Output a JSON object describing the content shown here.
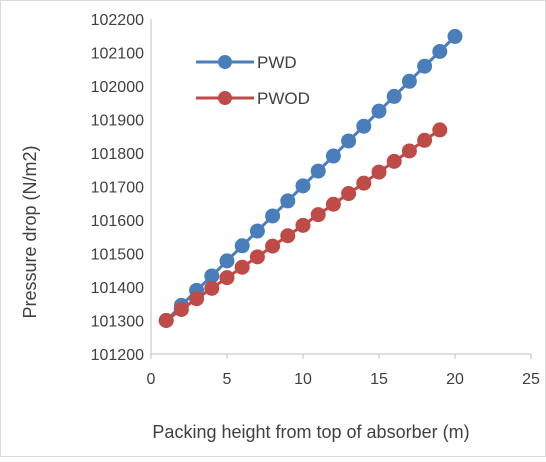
{
  "chart_data": {
    "type": "line",
    "title": "",
    "xlabel": "Packing height from top of absorber (m)",
    "ylabel": "Pressure drop (N/m2)",
    "xlim": [
      0,
      25
    ],
    "ylim": [
      101200,
      102200
    ],
    "xticks": [
      0,
      5,
      10,
      15,
      20,
      25
    ],
    "yticks": [
      101200,
      101300,
      101400,
      101500,
      101600,
      101700,
      101800,
      101900,
      102000,
      102100,
      102200
    ],
    "grid": false,
    "legend_position": "top-left",
    "series": [
      {
        "name": "PWD",
        "color": "#4a7ebb",
        "x": [
          1,
          2,
          3,
          4,
          5,
          6,
          7,
          8,
          9,
          10,
          11,
          12,
          13,
          14,
          15,
          16,
          17,
          18,
          19,
          20
        ],
        "y": [
          101300,
          101345,
          101390,
          101433,
          101478,
          101523,
          101567,
          101612,
          101657,
          101702,
          101746,
          101791,
          101836,
          101880,
          101925,
          101969,
          102014,
          102059,
          102103,
          102148
        ]
      },
      {
        "name": "PWOD",
        "color": "#be4b48",
        "x": [
          1,
          2,
          3,
          4,
          5,
          6,
          7,
          8,
          9,
          10,
          11,
          12,
          13,
          14,
          15,
          16,
          17,
          18,
          19
        ],
        "y": [
          101300,
          101333,
          101365,
          101396,
          101428,
          101459,
          101490,
          101522,
          101553,
          101584,
          101616,
          101647,
          101679,
          101710,
          101743,
          101775,
          101806,
          101838,
          101869
        ]
      }
    ]
  }
}
